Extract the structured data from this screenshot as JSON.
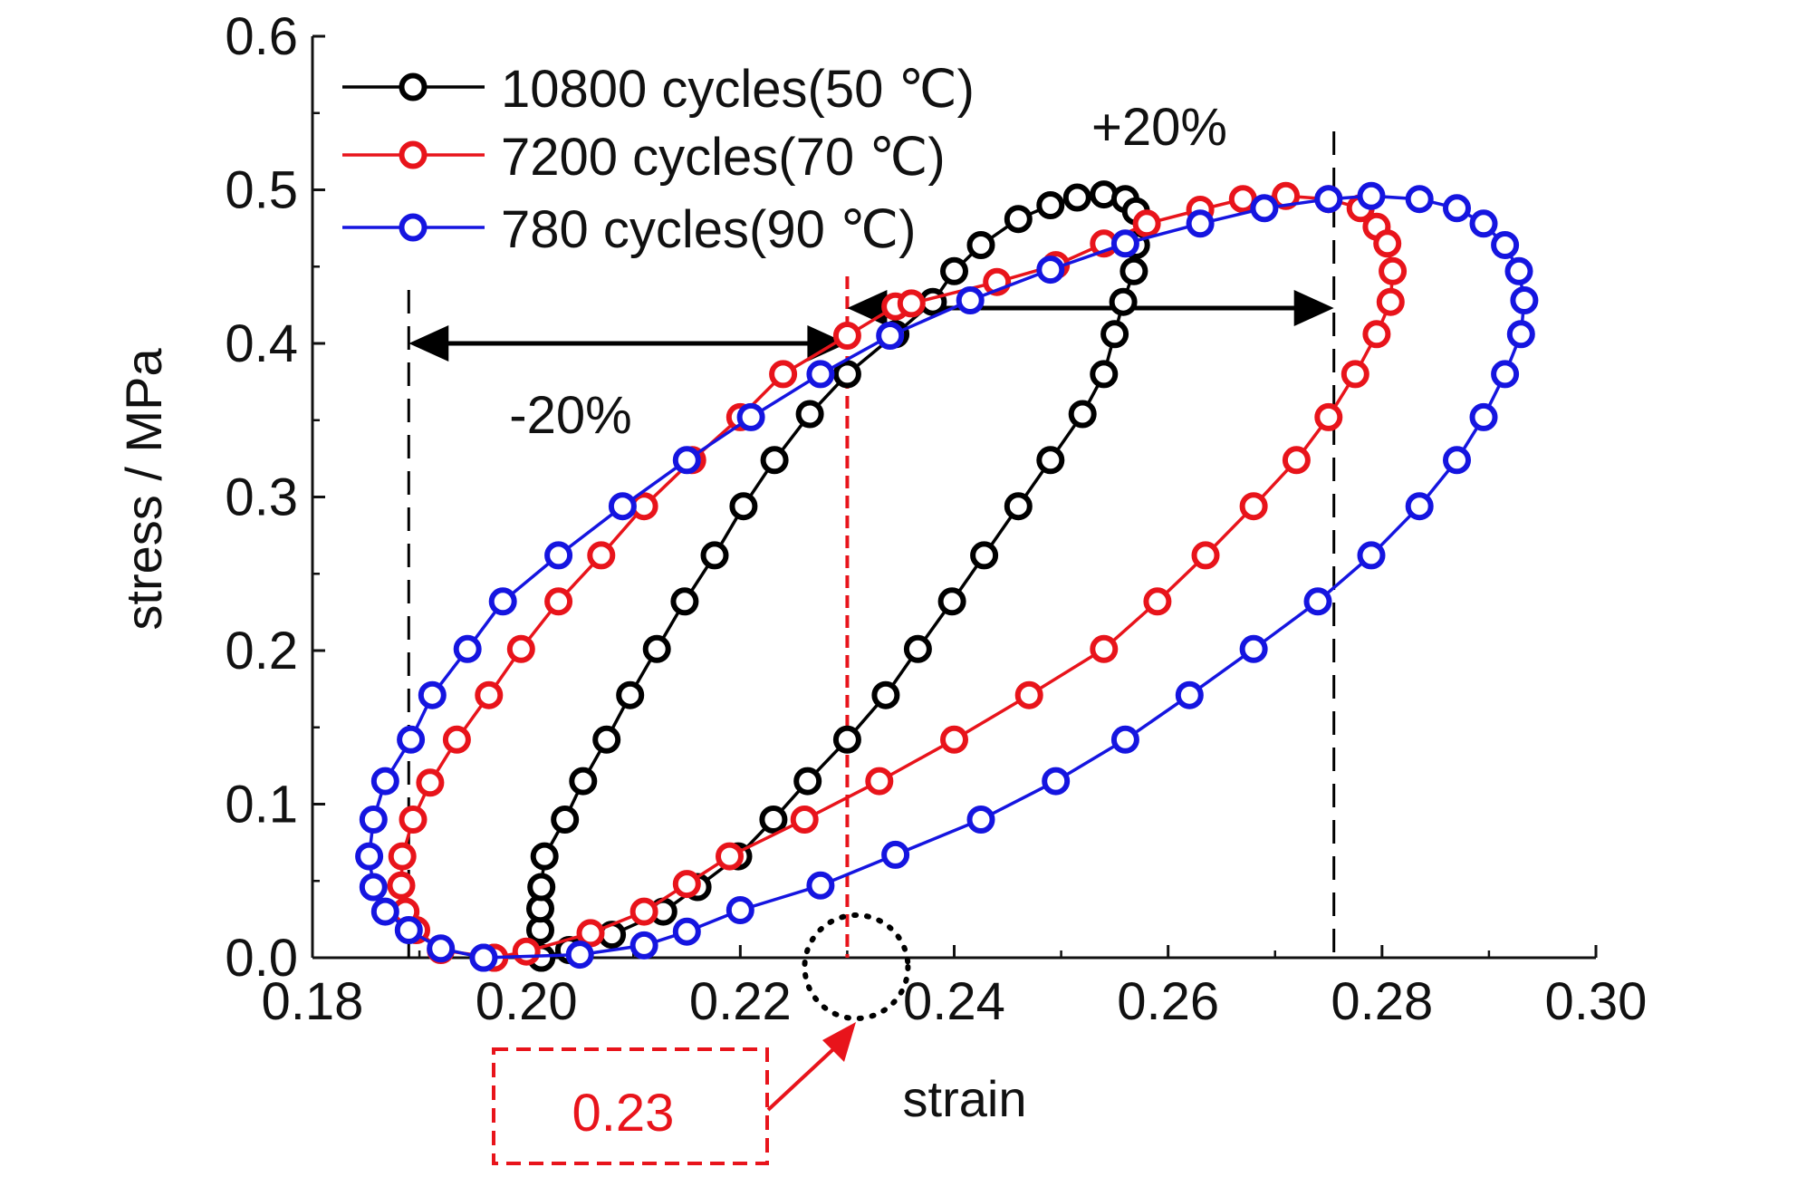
{
  "chart_data": {
    "type": "line",
    "title": "",
    "xlabel": "strain",
    "ylabel": "stress / MPa",
    "xlim": [
      0.18,
      0.3
    ],
    "ylim": [
      0.0,
      0.6
    ],
    "xticks": [
      0.18,
      0.2,
      0.22,
      0.24,
      0.26,
      0.28,
      0.3
    ],
    "xtick_labels": [
      "0.18",
      "0.20",
      "0.22",
      "0.24",
      "0.26",
      "0.28",
      "0.30"
    ],
    "yticks": [
      0.0,
      0.1,
      0.2,
      0.3,
      0.4,
      0.5,
      0.6
    ],
    "ytick_labels": [
      "0.0",
      "0.1",
      "0.2",
      "0.3",
      "0.4",
      "0.5",
      "0.6"
    ],
    "grid": false,
    "legend_position": "top-left",
    "series": [
      {
        "name": "10800 cycles(50 ℃)",
        "color": "#000000",
        "marker": "open-circle",
        "points": [
          [
            0.2014,
            0.0
          ],
          [
            0.2013,
            0.018
          ],
          [
            0.2013,
            0.032
          ],
          [
            0.2014,
            0.046
          ],
          [
            0.2017,
            0.066
          ],
          [
            0.2036,
            0.09
          ],
          [
            0.2053,
            0.115
          ],
          [
            0.2075,
            0.142
          ],
          [
            0.2097,
            0.171
          ],
          [
            0.2122,
            0.201
          ],
          [
            0.2148,
            0.232
          ],
          [
            0.2176,
            0.262
          ],
          [
            0.2203,
            0.294
          ],
          [
            0.2232,
            0.324
          ],
          [
            0.2265,
            0.354
          ],
          [
            0.23,
            0.38
          ],
          [
            0.2345,
            0.406
          ],
          [
            0.238,
            0.427
          ],
          [
            0.24,
            0.447
          ],
          [
            0.2425,
            0.464
          ],
          [
            0.246,
            0.481
          ],
          [
            0.249,
            0.49
          ],
          [
            0.2515,
            0.495
          ],
          [
            0.254,
            0.497
          ],
          [
            0.256,
            0.494
          ],
          [
            0.257,
            0.486
          ],
          [
            0.257,
            0.464
          ],
          [
            0.2568,
            0.447
          ],
          [
            0.2558,
            0.427
          ],
          [
            0.255,
            0.406
          ],
          [
            0.254,
            0.38
          ],
          [
            0.252,
            0.354
          ],
          [
            0.249,
            0.324
          ],
          [
            0.246,
            0.294
          ],
          [
            0.2428,
            0.262
          ],
          [
            0.2398,
            0.232
          ],
          [
            0.2366,
            0.201
          ],
          [
            0.2336,
            0.171
          ],
          [
            0.23,
            0.142
          ],
          [
            0.2263,
            0.115
          ],
          [
            0.2231,
            0.09
          ],
          [
            0.2198,
            0.066
          ],
          [
            0.216,
            0.046
          ],
          [
            0.2128,
            0.03
          ],
          [
            0.208,
            0.015
          ],
          [
            0.204,
            0.005
          ],
          [
            0.2014,
            0.0
          ]
        ]
      },
      {
        "name": "7200 cycles(70 ℃)",
        "color": "#e8141b",
        "marker": "open-circle",
        "points": [
          [
            0.197,
            0.0
          ],
          [
            0.192,
            0.005
          ],
          [
            0.1897,
            0.018
          ],
          [
            0.1887,
            0.03
          ],
          [
            0.1883,
            0.047
          ],
          [
            0.1884,
            0.066
          ],
          [
            0.1894,
            0.09
          ],
          [
            0.191,
            0.114
          ],
          [
            0.1935,
            0.142
          ],
          [
            0.1965,
            0.171
          ],
          [
            0.1995,
            0.201
          ],
          [
            0.203,
            0.232
          ],
          [
            0.207,
            0.262
          ],
          [
            0.211,
            0.294
          ],
          [
            0.2155,
            0.324
          ],
          [
            0.22,
            0.352
          ],
          [
            0.224,
            0.38
          ],
          [
            0.23,
            0.405
          ],
          [
            0.2345,
            0.424
          ],
          [
            0.236,
            0.426
          ],
          [
            0.244,
            0.44
          ],
          [
            0.2495,
            0.451
          ],
          [
            0.254,
            0.465
          ],
          [
            0.258,
            0.478
          ],
          [
            0.263,
            0.487
          ],
          [
            0.267,
            0.494
          ],
          [
            0.271,
            0.496
          ],
          [
            0.275,
            0.494
          ],
          [
            0.278,
            0.488
          ],
          [
            0.2795,
            0.476
          ],
          [
            0.2805,
            0.465
          ],
          [
            0.281,
            0.447
          ],
          [
            0.2808,
            0.427
          ],
          [
            0.2795,
            0.406
          ],
          [
            0.2775,
            0.38
          ],
          [
            0.275,
            0.352
          ],
          [
            0.272,
            0.324
          ],
          [
            0.268,
            0.294
          ],
          [
            0.2635,
            0.262
          ],
          [
            0.259,
            0.232
          ],
          [
            0.254,
            0.201
          ],
          [
            0.247,
            0.171
          ],
          [
            0.24,
            0.142
          ],
          [
            0.233,
            0.115
          ],
          [
            0.226,
            0.09
          ],
          [
            0.219,
            0.066
          ],
          [
            0.215,
            0.048
          ],
          [
            0.211,
            0.03
          ],
          [
            0.206,
            0.016
          ],
          [
            0.2,
            0.004
          ],
          [
            0.197,
            0.0
          ]
        ]
      },
      {
        "name": "780 cycles(90 ℃)",
        "color": "#1515e0",
        "marker": "open-circle",
        "points": [
          [
            0.196,
            0.0
          ],
          [
            0.192,
            0.006
          ],
          [
            0.189,
            0.018
          ],
          [
            0.1868,
            0.03
          ],
          [
            0.1857,
            0.046
          ],
          [
            0.1853,
            0.066
          ],
          [
            0.1857,
            0.09
          ],
          [
            0.1868,
            0.115
          ],
          [
            0.1892,
            0.142
          ],
          [
            0.1912,
            0.171
          ],
          [
            0.1945,
            0.201
          ],
          [
            0.1978,
            0.232
          ],
          [
            0.203,
            0.262
          ],
          [
            0.209,
            0.294
          ],
          [
            0.215,
            0.324
          ],
          [
            0.221,
            0.352
          ],
          [
            0.2275,
            0.38
          ],
          [
            0.234,
            0.405
          ],
          [
            0.2415,
            0.428
          ],
          [
            0.249,
            0.448
          ],
          [
            0.256,
            0.465
          ],
          [
            0.263,
            0.478
          ],
          [
            0.269,
            0.488
          ],
          [
            0.275,
            0.494
          ],
          [
            0.279,
            0.496
          ],
          [
            0.2835,
            0.494
          ],
          [
            0.287,
            0.488
          ],
          [
            0.2895,
            0.478
          ],
          [
            0.2915,
            0.464
          ],
          [
            0.2928,
            0.447
          ],
          [
            0.2933,
            0.428
          ],
          [
            0.293,
            0.406
          ],
          [
            0.2915,
            0.38
          ],
          [
            0.2895,
            0.352
          ],
          [
            0.287,
            0.324
          ],
          [
            0.2835,
            0.294
          ],
          [
            0.279,
            0.262
          ],
          [
            0.274,
            0.232
          ],
          [
            0.268,
            0.201
          ],
          [
            0.262,
            0.171
          ],
          [
            0.256,
            0.142
          ],
          [
            0.2495,
            0.115
          ],
          [
            0.2425,
            0.09
          ],
          [
            0.2345,
            0.067
          ],
          [
            0.2275,
            0.047
          ],
          [
            0.22,
            0.031
          ],
          [
            0.215,
            0.017
          ],
          [
            0.211,
            0.008
          ],
          [
            0.205,
            0.002
          ],
          [
            0.196,
            0.0
          ]
        ]
      }
    ],
    "annotations": {
      "minus_label": "-20%",
      "plus_label": "+20%",
      "center_value_label": "0.23",
      "left_dashed_x": 0.189,
      "center_dashed_x": 0.23,
      "right_dashed_x": 0.2755,
      "left_arrow_y": 0.4,
      "right_arrow_y": 0.423,
      "black_color": "#000000",
      "red_color": "#e8141b"
    }
  }
}
